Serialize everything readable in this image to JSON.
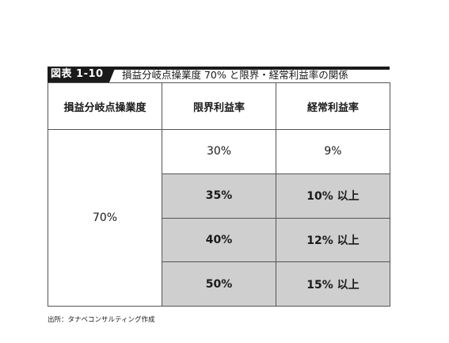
{
  "figure": {
    "tag": "図表 1-10",
    "title": "損益分岐点操業度 70% と限界・経常利益率の関係"
  },
  "table": {
    "headers": [
      "損益分岐点操業度",
      "限界利益率",
      "経常利益率"
    ],
    "merged_value": "70%",
    "rows": [
      {
        "marginal": "30%",
        "ordinary": "9%",
        "shaded": false
      },
      {
        "marginal": "35%",
        "ordinary": "10% 以上",
        "shaded": true
      },
      {
        "marginal": "40%",
        "ordinary": "12% 以上",
        "shaded": true
      },
      {
        "marginal": "50%",
        "ordinary": "15% 以上",
        "shaded": true
      }
    ]
  },
  "source": "出所：タナベコンサルティング作成"
}
